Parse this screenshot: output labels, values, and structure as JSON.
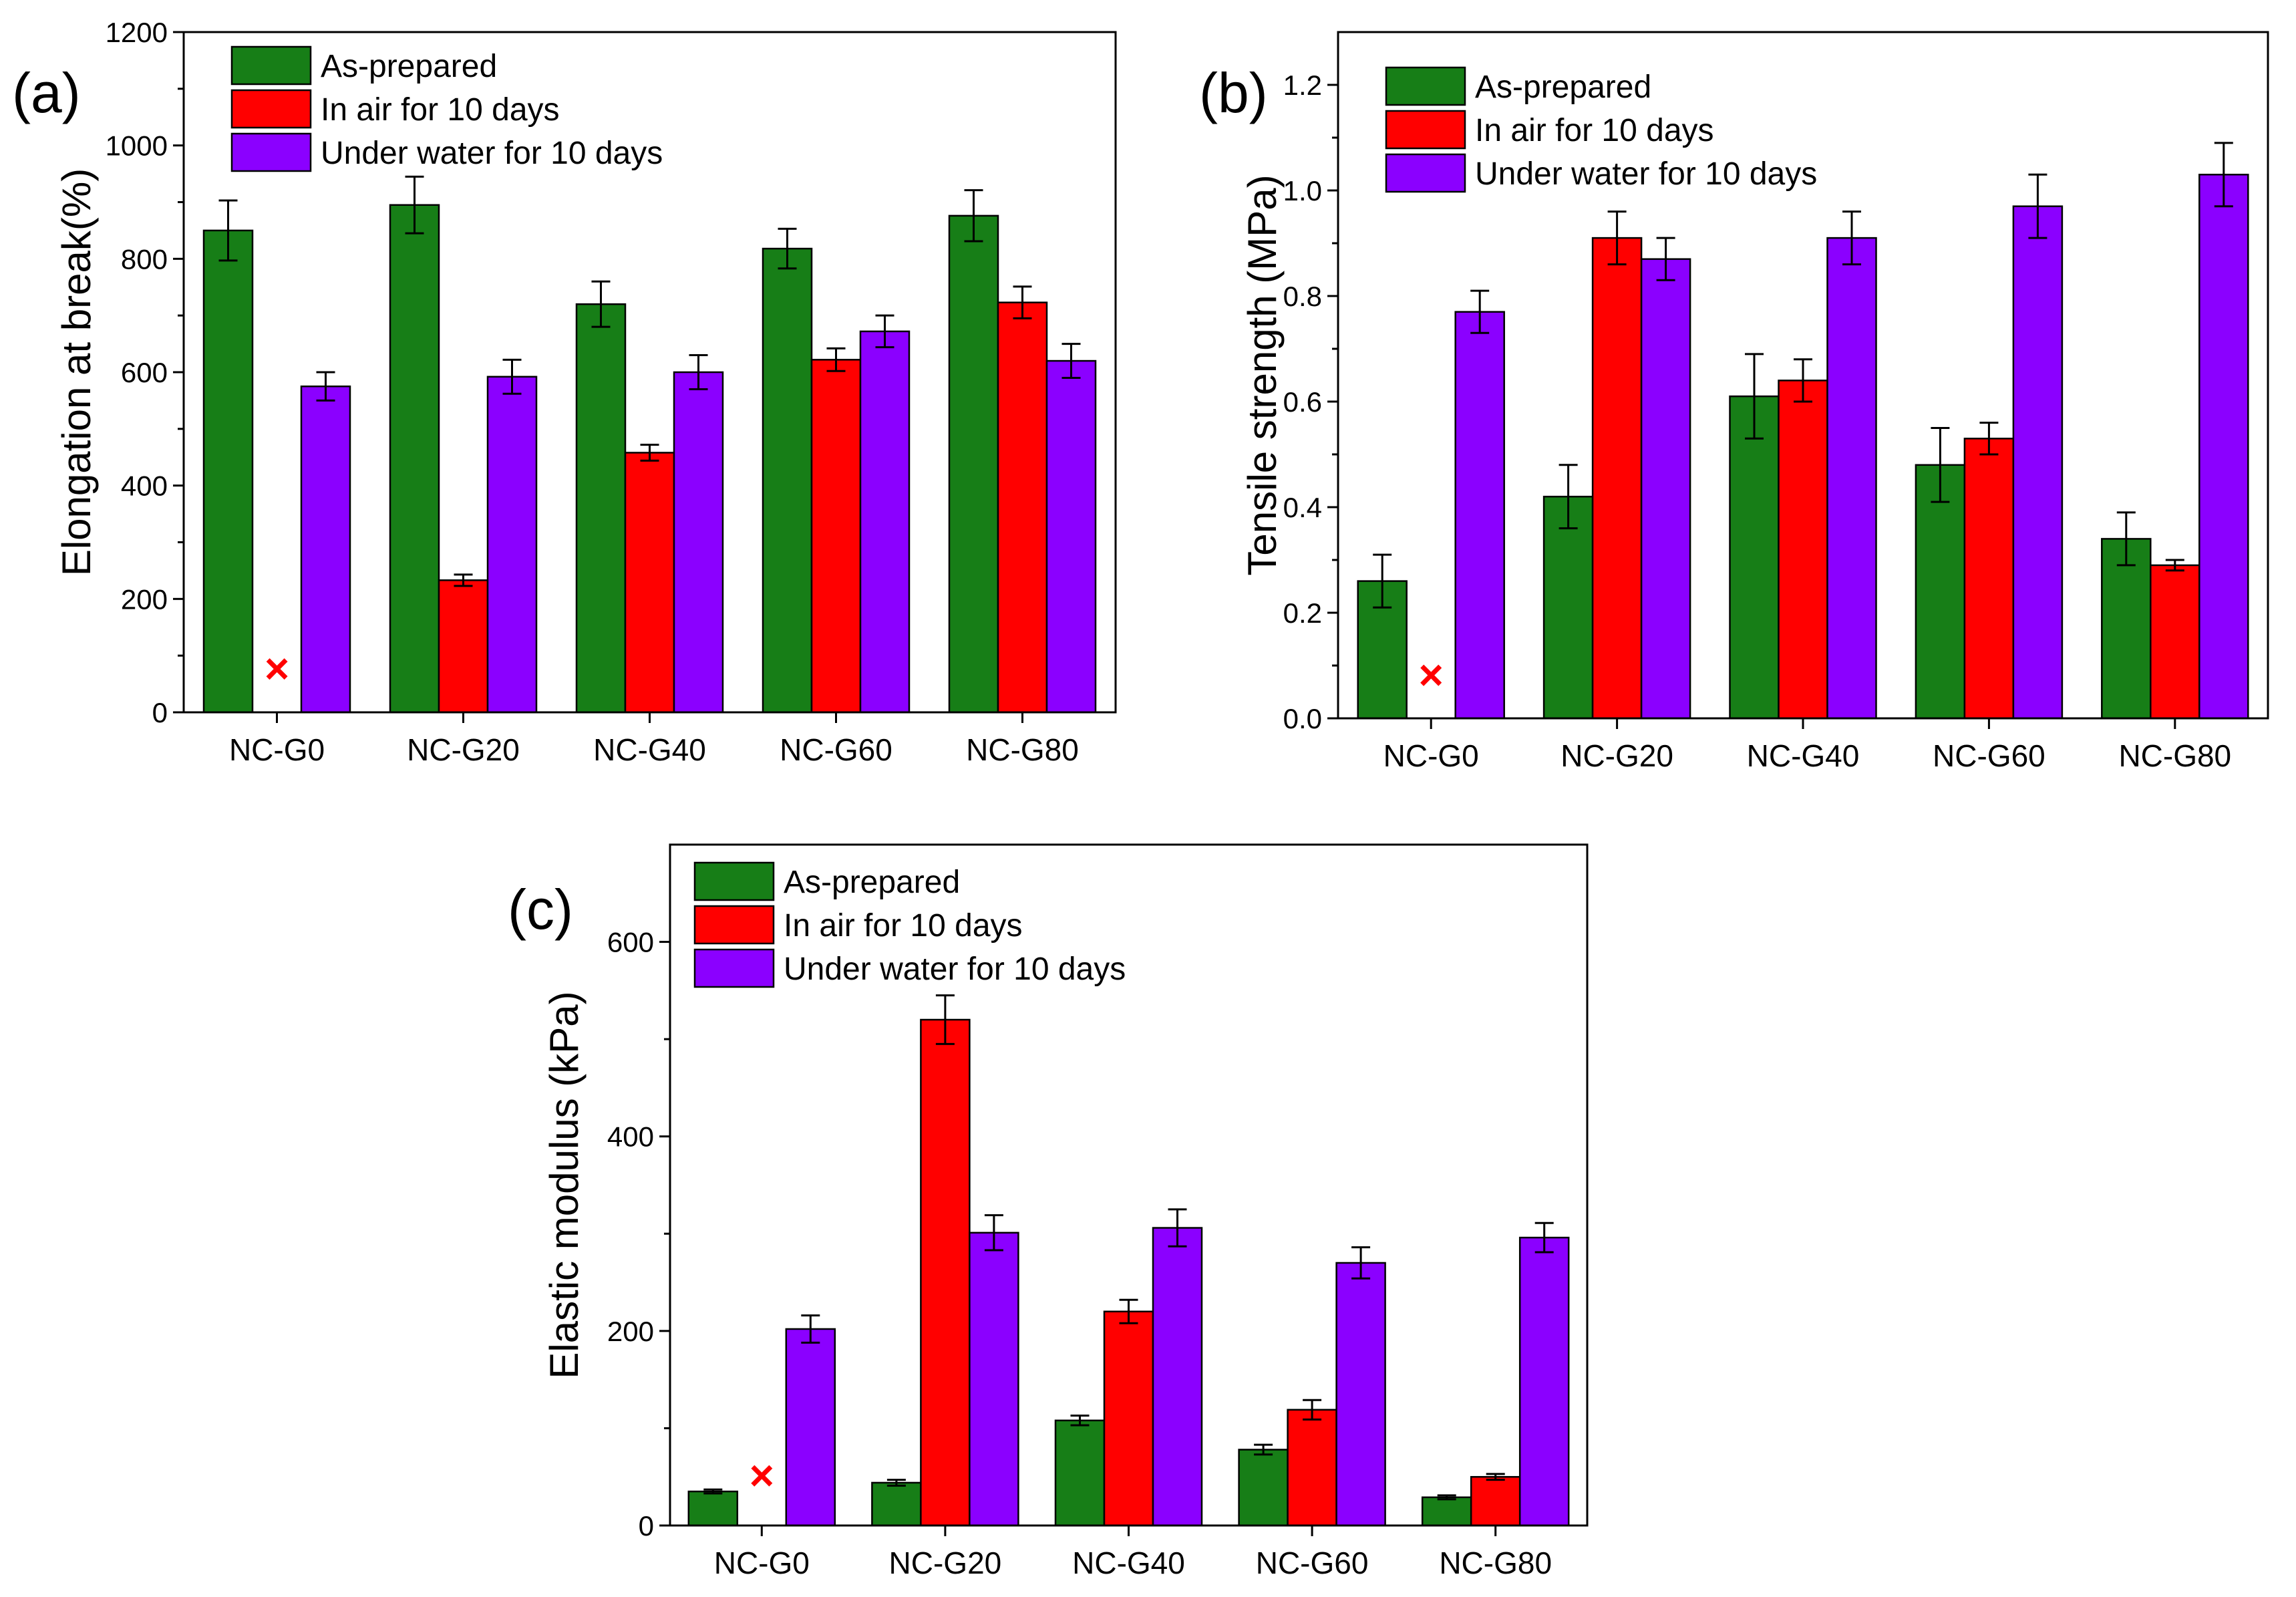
{
  "chart_data": [
    {
      "type": "bar",
      "panel_label": "(a)",
      "title": "",
      "xlabel": "",
      "ylabel": "Elongation at break(%)",
      "ylim": [
        0,
        1200
      ],
      "yticks": [
        0,
        200,
        400,
        600,
        800,
        1000,
        1200
      ],
      "categories": [
        "NC-G0",
        "NC-G20",
        "NC-G40",
        "NC-G60",
        "NC-G80"
      ],
      "series": [
        {
          "name": "As-prepared",
          "values": [
            850,
            895,
            720,
            818,
            876
          ],
          "errors": [
            53,
            50,
            40,
            35,
            45
          ]
        },
        {
          "name": "In air for 10 days",
          "values": [
            null,
            233,
            458,
            622,
            723
          ],
          "errors": [
            null,
            10,
            14,
            20,
            28
          ]
        },
        {
          "name": "Under water for 10 days",
          "values": [
            575,
            592,
            600,
            672,
            620
          ],
          "errors": [
            25,
            30,
            30,
            28,
            30
          ]
        }
      ],
      "missing_markers": [
        {
          "category": "NC-G0",
          "series": "In air for 10 days",
          "symbol": "×",
          "value": 75
        }
      ],
      "legend": [
        "As-prepared",
        "In air for 10 days",
        "Under water for 10 days"
      ],
      "legend_position": "top-left"
    },
    {
      "type": "bar",
      "panel_label": "(b)",
      "title": "",
      "xlabel": "",
      "ylabel": "Tensile strength (MPa)",
      "ylim": [
        0,
        1.3
      ],
      "yticks": [
        "0.0",
        "0.2",
        "0.4",
        "0.6",
        "0.8",
        "1.0",
        "1.2"
      ],
      "categories": [
        "NC-G0",
        "NC-G20",
        "NC-G40",
        "NC-G60",
        "NC-G80"
      ],
      "series": [
        {
          "name": "As-prepared",
          "values": [
            0.26,
            0.42,
            0.61,
            0.48,
            0.34
          ],
          "errors": [
            0.05,
            0.06,
            0.08,
            0.07,
            0.05
          ]
        },
        {
          "name": "In air for 10 days",
          "values": [
            null,
            0.91,
            0.64,
            0.53,
            0.29
          ],
          "errors": [
            null,
            0.05,
            0.04,
            0.03,
            0.01
          ]
        },
        {
          "name": "Under water for 10 days",
          "values": [
            0.77,
            0.87,
            0.91,
            0.97,
            1.03
          ],
          "errors": [
            0.04,
            0.04,
            0.05,
            0.06,
            0.06
          ]
        }
      ],
      "missing_markers": [
        {
          "category": "NC-G0",
          "series": "In air for 10 days",
          "symbol": "×",
          "value": 0.08
        }
      ],
      "legend": [
        "As-prepared",
        "In air for 10 days",
        "Under water for 10 days"
      ],
      "legend_position": "top-left"
    },
    {
      "type": "bar",
      "panel_label": "(c)",
      "title": "",
      "xlabel": "",
      "ylabel": "Elastic modulus (kPa)",
      "ylim": [
        0,
        700
      ],
      "yticks": [
        0,
        200,
        400,
        600
      ],
      "categories": [
        "NC-G0",
        "NC-G20",
        "NC-G40",
        "NC-G60",
        "NC-G80"
      ],
      "series": [
        {
          "name": "As-prepared",
          "values": [
            35,
            44,
            108,
            78,
            29
          ],
          "errors": [
            2,
            3,
            5,
            5,
            2
          ]
        },
        {
          "name": "In air for 10 days",
          "values": [
            null,
            520,
            220,
            119,
            50
          ],
          "errors": [
            null,
            25,
            12,
            10,
            3
          ]
        },
        {
          "name": "Under water for 10 days",
          "values": [
            202,
            301,
            306,
            270,
            296
          ],
          "errors": [
            14,
            18,
            19,
            16,
            15
          ]
        }
      ],
      "missing_markers": [
        {
          "category": "NC-G0",
          "series": "In air for 10 days",
          "symbol": "×",
          "value": 50
        }
      ],
      "legend": [
        "As-prepared",
        "In air for 10 days",
        "Under water for 10 days"
      ],
      "legend_position": "top-left"
    }
  ],
  "colors": {
    "As-prepared": "#177e17",
    "In air for 10 days": "#ff0000",
    "Under water for 10 days": "#8b00ff",
    "missing_marker": "#ff0000",
    "axes": "#000000"
  }
}
